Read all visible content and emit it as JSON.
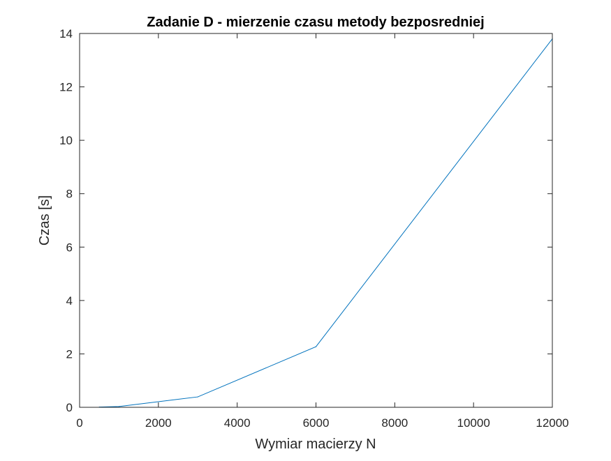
{
  "chart_data": {
    "type": "line",
    "title": "Zadanie D - mierzenie czasu metody bezposredniej",
    "xlabel": "Wymiar macierzy N",
    "ylabel": "Czas [s]",
    "xlim": [
      0,
      12000
    ],
    "ylim": [
      0,
      14
    ],
    "xticks": [
      0,
      2000,
      4000,
      6000,
      8000,
      10000,
      12000
    ],
    "yticks": [
      0,
      2,
      4,
      6,
      8,
      10,
      12,
      14
    ],
    "grid": false,
    "legend": "none",
    "series": [
      {
        "color": "#0072bd",
        "x": [
          500,
          1000,
          3000,
          6000,
          12000
        ],
        "y": [
          0.01,
          0.03,
          0.39,
          2.27,
          13.8
        ]
      }
    ]
  }
}
